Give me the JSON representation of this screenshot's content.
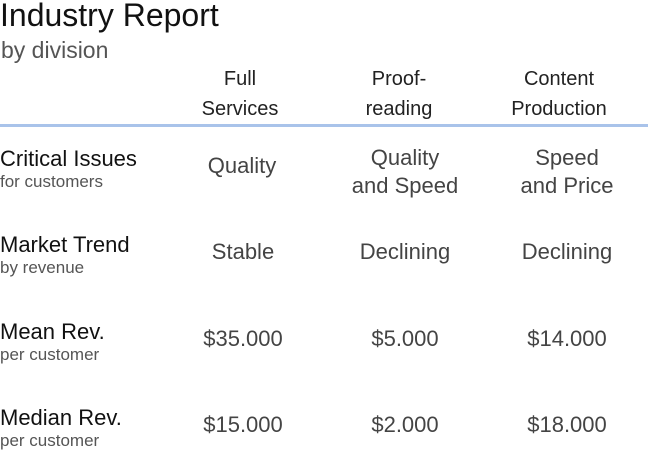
{
  "report": {
    "title": "Industry Report",
    "subtitle": "by division"
  },
  "columns": [
    {
      "line1": "Full",
      "line2": "Services"
    },
    {
      "line1": "Proof-",
      "line2": "reading"
    },
    {
      "line1": "Content",
      "line2": "Production"
    }
  ],
  "rows": [
    {
      "label": "Critical Issues",
      "sublabel": "for customers",
      "cells": [
        {
          "line1": "Quality",
          "line2": ""
        },
        {
          "line1": "Quality",
          "line2": "and Speed"
        },
        {
          "line1": "Speed",
          "line2": "and Price"
        }
      ]
    },
    {
      "label": "Market Trend",
      "sublabel": "by revenue",
      "cells": [
        {
          "line1": "Stable",
          "line2": ""
        },
        {
          "line1": "Declining",
          "line2": ""
        },
        {
          "line1": "Declining",
          "line2": ""
        }
      ]
    },
    {
      "label": "Mean Rev.",
      "sublabel": "per customer",
      "cells": [
        {
          "line1": "$35.000",
          "line2": ""
        },
        {
          "line1": "$5.000",
          "line2": ""
        },
        {
          "line1": "$14.000",
          "line2": ""
        }
      ]
    },
    {
      "label": "Median Rev.",
      "sublabel": "per customer",
      "cells": [
        {
          "line1": "$15.000",
          "line2": ""
        },
        {
          "line1": "$2.000",
          "line2": ""
        },
        {
          "line1": "$18.000",
          "line2": ""
        }
      ]
    }
  ]
}
